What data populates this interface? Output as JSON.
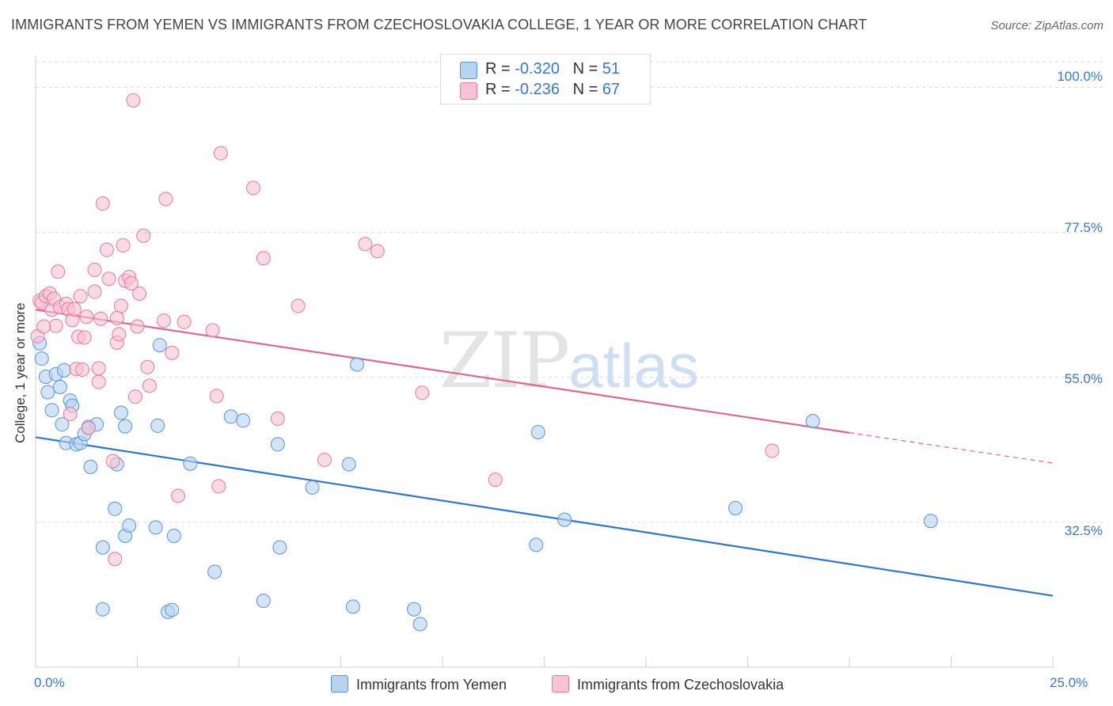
{
  "title": "IMMIGRANTS FROM YEMEN VS IMMIGRANTS FROM CZECHOSLOVAKIA COLLEGE, 1 YEAR OR MORE CORRELATION CHART",
  "source": "Source: ZipAtlas.com",
  "watermark": {
    "zip": "ZIP",
    "atlas": "atlas"
  },
  "legend": {
    "yemen": {
      "r_label": "R = ",
      "r_value": "-0.320",
      "n_label": "N = ",
      "n_value": "51"
    },
    "czech": {
      "r_label": "R = ",
      "r_value": "-0.236",
      "n_label": "N = ",
      "n_value": "67"
    }
  },
  "colors": {
    "yemen": "#5b93d6",
    "yemen_fill": "#b8d2f2",
    "czech": "#e8799d",
    "czech_fill": "#f7c3d2",
    "yemen_line": "#2f74cf",
    "czech_line": "#e06690",
    "accent": "#3a78c9"
  },
  "chart_data": {
    "type": "scatter",
    "title": "IMMIGRANTS FROM YEMEN VS IMMIGRANTS FROM CZECHOSLOVAKIA COLLEGE, 1 YEAR OR MORE CORRELATION CHART",
    "xlabel": "",
    "ylabel": "College, 1 year or more",
    "xlim": [
      0,
      25
    ],
    "ylim": [
      10,
      104
    ],
    "x_tick_labels": [
      "0.0%",
      "25.0%"
    ],
    "y_ticks": [
      32.5,
      55.0,
      77.5,
      100.0
    ],
    "y_tick_labels": [
      "32.5%",
      "55.0%",
      "77.5%",
      "100.0%"
    ],
    "grid": true,
    "series": [
      {
        "name": "Immigrants from Yemen",
        "trend": {
          "x": [
            0,
            25
          ],
          "y": [
            45.7,
            21.1
          ]
        },
        "points": [
          [
            0.1,
            60.3
          ],
          [
            0.15,
            57.9
          ],
          [
            0.25,
            55.1
          ],
          [
            0.3,
            52.7
          ],
          [
            0.4,
            49.9
          ],
          [
            0.5,
            55.5
          ],
          [
            0.6,
            53.5
          ],
          [
            0.65,
            47.7
          ],
          [
            0.7,
            56.1
          ],
          [
            0.75,
            44.8
          ],
          [
            0.85,
            51.4
          ],
          [
            0.9,
            50.6
          ],
          [
            1.0,
            44.6
          ],
          [
            1.1,
            44.8
          ],
          [
            1.2,
            46.2
          ],
          [
            1.3,
            47.3
          ],
          [
            1.35,
            41.1
          ],
          [
            1.5,
            47.7
          ],
          [
            1.65,
            28.6
          ],
          [
            1.95,
            34.6
          ],
          [
            2.0,
            41.5
          ],
          [
            2.1,
            49.5
          ],
          [
            2.2,
            47.4
          ],
          [
            2.2,
            30.4
          ],
          [
            2.3,
            32.0
          ],
          [
            2.95,
            31.7
          ],
          [
            3.0,
            47.5
          ],
          [
            3.05,
            60.0
          ],
          [
            3.25,
            18.6
          ],
          [
            3.35,
            18.9
          ],
          [
            3.4,
            30.4
          ],
          [
            3.8,
            41.6
          ],
          [
            4.4,
            24.8
          ],
          [
            4.8,
            48.9
          ],
          [
            5.1,
            48.3
          ],
          [
            5.6,
            20.3
          ],
          [
            5.95,
            44.6
          ],
          [
            6.0,
            28.6
          ],
          [
            6.8,
            37.9
          ],
          [
            7.7,
            41.5
          ],
          [
            7.8,
            19.4
          ],
          [
            7.9,
            57.0
          ],
          [
            9.3,
            19.0
          ],
          [
            9.45,
            16.7
          ],
          [
            12.3,
            29.0
          ],
          [
            12.35,
            46.5
          ],
          [
            13.0,
            32.9
          ],
          [
            17.2,
            34.7
          ],
          [
            19.1,
            48.2
          ],
          [
            22.0,
            32.7
          ],
          [
            1.65,
            19.0
          ]
        ]
      },
      {
        "name": "Immigrants from Czechoslovakia",
        "trend": {
          "x": [
            0,
            20
          ],
          "y": [
            65.5,
            46.4
          ]
        },
        "trend_dashed": {
          "x": [
            20,
            25
          ],
          "y": [
            46.4,
            41.7
          ]
        },
        "points": [
          [
            0.05,
            61.4
          ],
          [
            0.1,
            66.9
          ],
          [
            0.15,
            66.6
          ],
          [
            0.25,
            67.6
          ],
          [
            0.35,
            68.0
          ],
          [
            0.4,
            65.5
          ],
          [
            0.45,
            67.2
          ],
          [
            0.5,
            63.0
          ],
          [
            0.55,
            71.4
          ],
          [
            0.6,
            65.9
          ],
          [
            0.75,
            66.4
          ],
          [
            0.8,
            65.6
          ],
          [
            0.85,
            49.3
          ],
          [
            0.9,
            63.9
          ],
          [
            0.95,
            65.6
          ],
          [
            1.0,
            56.3
          ],
          [
            1.1,
            67.6
          ],
          [
            1.15,
            56.2
          ],
          [
            1.05,
            61.3
          ],
          [
            1.2,
            61.2
          ],
          [
            1.25,
            64.4
          ],
          [
            1.3,
            47.1
          ],
          [
            1.45,
            68.3
          ],
          [
            1.45,
            71.7
          ],
          [
            1.55,
            54.3
          ],
          [
            1.55,
            56.4
          ],
          [
            1.6,
            64.1
          ],
          [
            1.65,
            82.0
          ],
          [
            1.75,
            74.8
          ],
          [
            1.8,
            70.3
          ],
          [
            1.9,
            42.0
          ],
          [
            1.95,
            26.8
          ],
          [
            2.0,
            60.4
          ],
          [
            2.05,
            61.7
          ],
          [
            2.1,
            66.1
          ],
          [
            2.15,
            75.5
          ],
          [
            2.2,
            70.0
          ],
          [
            2.3,
            70.6
          ],
          [
            2.35,
            69.6
          ],
          [
            2.4,
            98.0
          ],
          [
            2.45,
            52.0
          ],
          [
            2.5,
            62.9
          ],
          [
            2.55,
            68.0
          ],
          [
            2.65,
            77.0
          ],
          [
            2.75,
            56.6
          ],
          [
            2.8,
            53.7
          ],
          [
            3.15,
            63.8
          ],
          [
            3.2,
            82.7
          ],
          [
            3.35,
            58.8
          ],
          [
            3.5,
            36.6
          ],
          [
            3.65,
            63.6
          ],
          [
            4.35,
            62.3
          ],
          [
            4.45,
            52.1
          ],
          [
            4.5,
            38.1
          ],
          [
            4.55,
            89.8
          ],
          [
            5.35,
            84.4
          ],
          [
            5.6,
            73.5
          ],
          [
            5.95,
            48.6
          ],
          [
            6.45,
            66.1
          ],
          [
            7.1,
            42.2
          ],
          [
            8.1,
            75.7
          ],
          [
            8.4,
            74.6
          ],
          [
            9.5,
            52.6
          ],
          [
            11.3,
            39.1
          ],
          [
            18.1,
            43.6
          ],
          [
            2.0,
            64.2
          ],
          [
            0.2,
            62.9
          ]
        ]
      }
    ]
  },
  "bottom_legend": {
    "yemen": "Immigrants from Yemen",
    "czech": "Immigrants from Czechoslovakia"
  }
}
